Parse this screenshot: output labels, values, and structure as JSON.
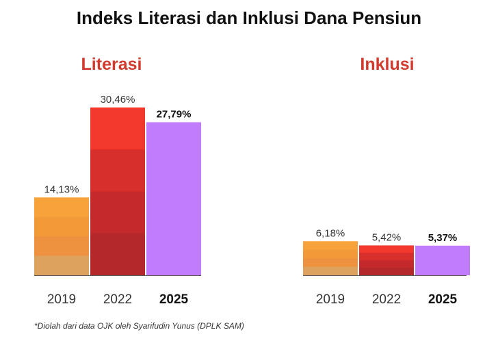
{
  "title": "Indeks Literasi dan Inklusi Dana Pensiun",
  "footnote": "*Diolah dari data OJK oleh Syarifudin Yunus (DPLK SAM)",
  "colors": {
    "title_accent": "#d23a2d",
    "2019": [
      "#f7a23a",
      "#f39a38",
      "#ee9240",
      "#dda35e"
    ],
    "2022": [
      "#f2382c",
      "#d72f2b",
      "#c42a2b",
      "#b4272b"
    ],
    "2025": [
      "#c07cfb"
    ]
  },
  "chart_data": [
    {
      "type": "bar",
      "title": "Literasi",
      "categories": [
        "2019",
        "2022",
        "2025"
      ],
      "values": [
        14.13,
        30.46,
        27.79
      ],
      "value_labels": [
        "14,13%",
        "30,46%",
        "27,79%"
      ],
      "highlight": "2025",
      "ylim": [
        0,
        30.46
      ]
    },
    {
      "type": "bar",
      "title": "Inklusi",
      "categories": [
        "2019",
        "2022",
        "2025"
      ],
      "values": [
        6.18,
        5.42,
        5.37
      ],
      "value_labels": [
        "6,18%",
        "5,42%",
        "5,37%"
      ],
      "highlight": "2025",
      "ylim": [
        0,
        30.46
      ]
    }
  ]
}
